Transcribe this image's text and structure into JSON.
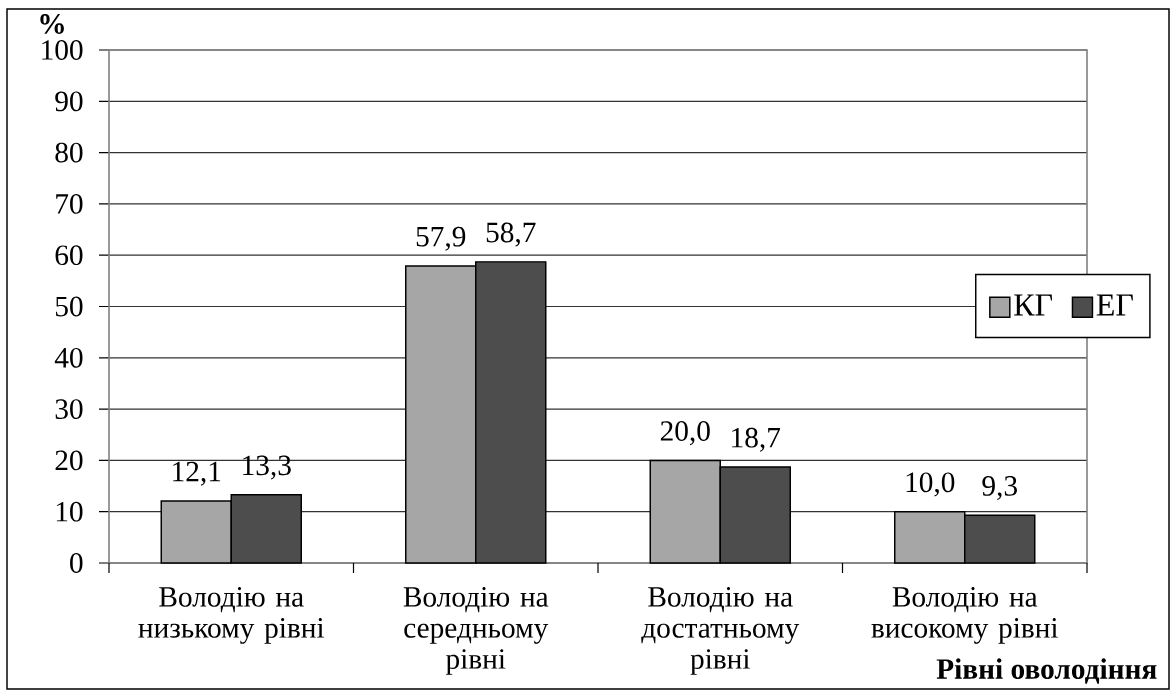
{
  "chart_data": {
    "type": "bar",
    "ylabel": "%",
    "xlabel": "Рівні оволодіння",
    "categories": [
      "Володію на низькому рівні",
      "Володію на середньому рівні",
      "Володію на достатньому рівні",
      "Володію на високому рівні"
    ],
    "series": [
      {
        "name": "КГ",
        "color": "#a6a6a6",
        "values": [
          12.1,
          57.9,
          20.0,
          10.0
        ],
        "value_labels": [
          "12,1",
          "57,9",
          "20,0",
          "10,0"
        ]
      },
      {
        "name": "ЕГ",
        "color": "#4d4d4d",
        "values": [
          13.3,
          58.7,
          18.7,
          9.3
        ],
        "value_labels": [
          "13,3",
          "58,7",
          "18,7",
          "9,3"
        ]
      }
    ],
    "ylim": [
      0,
      100
    ],
    "yticks": [
      0,
      10,
      20,
      30,
      40,
      50,
      60,
      70,
      80,
      90,
      100
    ],
    "grid": "y",
    "legend": "right"
  }
}
